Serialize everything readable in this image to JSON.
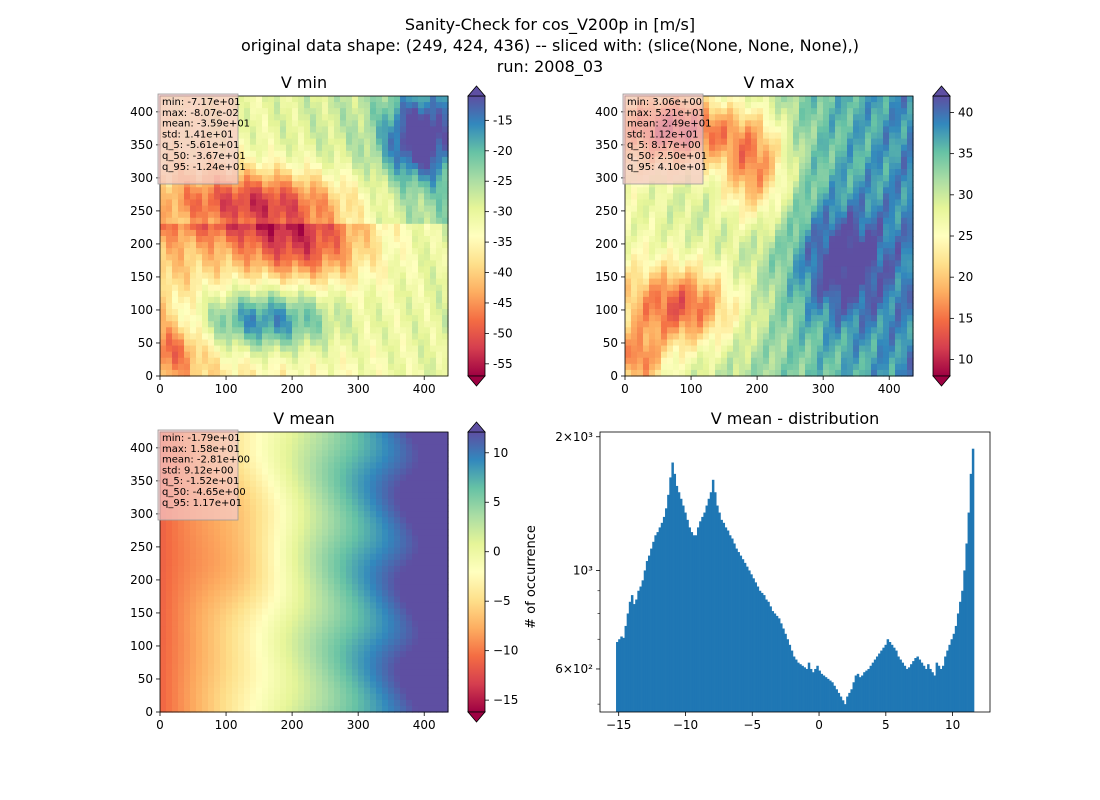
{
  "figure": {
    "title_lines": [
      "Sanity-Check for cos_V200p in [m/s]",
      "original data shape: (249, 424, 436) -- sliced with: (slice(None, None, None),)",
      "run: 2008_03"
    ]
  },
  "colormap": {
    "name": "Spectral",
    "stops": [
      "#9e0142",
      "#d53e4f",
      "#f46d43",
      "#fdae61",
      "#fee08b",
      "#ffffbf",
      "#e6f598",
      "#abdda4",
      "#66c2a5",
      "#3288bd",
      "#5e4fa2"
    ]
  },
  "chart_data": [
    {
      "type": "heatmap",
      "title": "V min",
      "xticks": [
        "0",
        "100",
        "200",
        "300",
        "400"
      ],
      "yticks": [
        "0",
        "50",
        "100",
        "150",
        "200",
        "250",
        "300",
        "350",
        "400"
      ],
      "xlim": [
        0,
        436
      ],
      "ylim": [
        0,
        424
      ],
      "color_range": [
        -57,
        -11
      ],
      "colorbar_ticks": [
        "-15",
        "-20",
        "-25",
        "-30",
        "-35",
        "-40",
        "-45",
        "-50",
        "-55"
      ],
      "colorbar_tick_values": [
        -15,
        -20,
        -25,
        -30,
        -35,
        -40,
        -45,
        -50,
        -55
      ],
      "stats": [
        "min: -7.17e+01",
        "max: -8.07e-02",
        "mean: -3.59e+01",
        "std: 1.41e+01",
        "q_5: -5.61e+01",
        "q_50: -3.67e+01",
        "q_95: -1.24e+01"
      ]
    },
    {
      "type": "heatmap",
      "title": "V max",
      "xticks": [
        "0",
        "100",
        "200",
        "300",
        "400"
      ],
      "yticks": [
        "0",
        "50",
        "100",
        "150",
        "200",
        "250",
        "300",
        "350",
        "400"
      ],
      "xlim": [
        0,
        436
      ],
      "ylim": [
        0,
        424
      ],
      "color_range": [
        8,
        42
      ],
      "colorbar_ticks": [
        "40",
        "35",
        "30",
        "25",
        "20",
        "15",
        "10"
      ],
      "colorbar_tick_values": [
        40,
        35,
        30,
        25,
        20,
        15,
        10
      ],
      "stats": [
        "min: 3.06e+00",
        "max: 5.21e+01",
        "mean: 2.49e+01",
        "std: 1.12e+01",
        "q_5: 8.17e+00",
        "q_50: 2.50e+01",
        "q_95: 4.10e+01"
      ]
    },
    {
      "type": "heatmap",
      "title": "V mean",
      "xticks": [
        "0",
        "100",
        "200",
        "300",
        "400"
      ],
      "yticks": [
        "0",
        "50",
        "100",
        "150",
        "200",
        "250",
        "300",
        "350",
        "400"
      ],
      "xlim": [
        0,
        436
      ],
      "ylim": [
        0,
        424
      ],
      "color_range": [
        -16.2,
        12.1
      ],
      "colorbar_ticks": [
        "10",
        "5",
        "0",
        "−5",
        "−10",
        "−15"
      ],
      "colorbar_tick_values": [
        10,
        5,
        0,
        -5,
        -10,
        -15
      ],
      "stats": [
        "min: -1.79e+01",
        "max: 1.58e+01",
        "mean: -2.81e+00",
        "std: 9.12e+00",
        "q_5: -1.52e+01",
        "q_50: -4.65e+00",
        "q_95: 1.17e+01"
      ]
    },
    {
      "type": "bar",
      "title": "V mean - distribution",
      "ylabel": "# of occurrence",
      "y_scale": "log",
      "xlim": [
        -16.4,
        12.8
      ],
      "ylim": [
        480,
        2050
      ],
      "xticks": [
        -15,
        -10,
        -5,
        0,
        5,
        10
      ],
      "xtick_labels": [
        "−15",
        "−10",
        "−5",
        "0",
        "5",
        "10"
      ],
      "yticks": [
        {
          "value": 2000,
          "label": "2×10³"
        },
        {
          "value": 1000,
          "label": "10³"
        },
        {
          "value": 600,
          "label": "6×10²"
        }
      ],
      "bar_color": "#1f77b4",
      "bin_range": [
        -15.2,
        11.6
      ],
      "counts": [
        690,
        700,
        710,
        705,
        750,
        800,
        850,
        880,
        840,
        860,
        900,
        920,
        950,
        1000,
        1050,
        1080,
        1120,
        1160,
        1200,
        1220,
        1250,
        1280,
        1320,
        1380,
        1480,
        1620,
        1750,
        1650,
        1550,
        1500,
        1450,
        1400,
        1350,
        1300,
        1250,
        1220,
        1200,
        1200,
        1250,
        1290,
        1320,
        1350,
        1400,
        1450,
        1500,
        1600,
        1500,
        1400,
        1350,
        1300,
        1280,
        1250,
        1230,
        1200,
        1180,
        1150,
        1120,
        1100,
        1080,
        1060,
        1040,
        1020,
        1000,
        980,
        960,
        940,
        920,
        900,
        890,
        880,
        860,
        850,
        830,
        810,
        800,
        790,
        780,
        760,
        740,
        720,
        700,
        680,
        660,
        640,
        630,
        620,
        615,
        610,
        605,
        600,
        620,
        600,
        590,
        600,
        610,
        595,
        585,
        580,
        575,
        570,
        565,
        560,
        550,
        540,
        530,
        520,
        510,
        500,
        520,
        530,
        540,
        560,
        580,
        585,
        575,
        580,
        590,
        595,
        600,
        610,
        620,
        630,
        640,
        650,
        660,
        670,
        680,
        700,
        690,
        680,
        670,
        660,
        640,
        630,
        620,
        610,
        600,
        605,
        615,
        625,
        635,
        640,
        630,
        620,
        610,
        600,
        615,
        600,
        590,
        580,
        620,
        610,
        600,
        610,
        640,
        660,
        680,
        700,
        720,
        750,
        800,
        850,
        900,
        1000,
        1150,
        1350,
        1650,
        1880
      ]
    }
  ]
}
